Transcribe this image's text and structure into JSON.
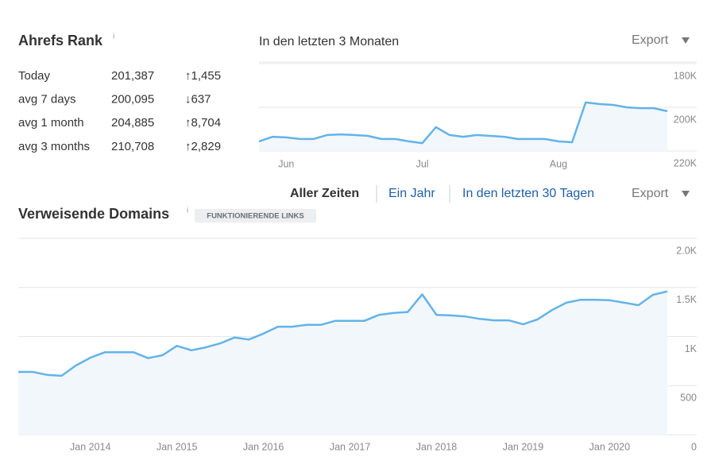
{
  "rank": {
    "title": "Ahrefs Rank",
    "info": "i",
    "rows": [
      {
        "label": "Today",
        "value": "201,387",
        "change": "↑1,455",
        "color": "#2a9a3a"
      },
      {
        "label": "avg 7 days",
        "value": "200,095",
        "change": "↓637",
        "color": "#b8221c"
      },
      {
        "label": "avg 1 month",
        "value": "204,885",
        "change": "↑8,704",
        "color": "#2a9a3a"
      },
      {
        "label": "avg 3 months",
        "value": "210,708",
        "change": "↑2,829",
        "color": "#2a9a3a"
      }
    ]
  },
  "tabs": [
    "Aller Zeiten",
    "Ein Jahr",
    "In den letzten 30 Tagen"
  ],
  "chart_data": [
    {
      "type": "line",
      "title": "In den letzten 3 Monaten",
      "export": "Export",
      "color": "#63b3e8",
      "area_color": "#f2f7fc",
      "grid": true,
      "categories": [
        null,
        null,
        "Jun",
        null,
        null,
        null,
        null,
        null,
        null,
        null,
        null,
        null,
        "Jul",
        null,
        null,
        null,
        null,
        null,
        null,
        null,
        null,
        null,
        "Aug",
        null,
        null,
        null,
        null,
        null,
        null,
        null,
        null
      ],
      "values": [
        215600,
        213500,
        213800,
        214500,
        214500,
        212700,
        212400,
        212700,
        213100,
        214500,
        214500,
        215600,
        216400,
        209100,
        212700,
        213500,
        212700,
        213100,
        213500,
        214500,
        214500,
        214500,
        215600,
        216000,
        197800,
        198500,
        198900,
        200000,
        200400,
        200400,
        201800
      ],
      "ylim": [
        220000,
        180000
      ],
      "yticks": [
        {
          "value": 180000,
          "label": "180K"
        },
        {
          "value": 200000,
          "label": "200K"
        },
        {
          "value": 220000,
          "label": "220K"
        }
      ]
    },
    {
      "type": "line",
      "title": "Verweisende Domains",
      "info": "i",
      "badge": "FUNKTIONIERENDE LINKS",
      "export": "Export",
      "color": "#63b3e8",
      "area_color": "#f2f7fc",
      "grid": true,
      "categories": [
        null,
        null,
        null,
        null,
        null,
        "Jan 2014",
        null,
        null,
        null,
        null,
        null,
        "Jan 2015",
        null,
        null,
        null,
        null,
        null,
        "Jan 2016",
        null,
        null,
        null,
        null,
        null,
        "Jan 2017",
        null,
        null,
        null,
        null,
        null,
        "Jan 2018",
        null,
        null,
        null,
        null,
        null,
        "Jan 2019",
        null,
        null,
        null,
        null,
        null,
        "Jan 2020",
        null,
        null,
        null,
        null
      ],
      "values": [
        640,
        640,
        610,
        600,
        705,
        785,
        840,
        840,
        840,
        780,
        810,
        905,
        860,
        890,
        930,
        990,
        970,
        1030,
        1100,
        1100,
        1120,
        1120,
        1160,
        1160,
        1160,
        1220,
        1240,
        1250,
        1430,
        1220,
        1215,
        1205,
        1180,
        1165,
        1165,
        1125,
        1175,
        1270,
        1345,
        1375,
        1375,
        1370,
        1345,
        1320,
        1425,
        1460
      ],
      "ylim": [
        0,
        2000
      ],
      "yticks": [
        0,
        500,
        {
          "value": 1000,
          "label": "1K"
        },
        {
          "value": 1500,
          "label": "1.5K"
        },
        {
          "value": 2000,
          "label": "2.0K"
        }
      ]
    }
  ]
}
